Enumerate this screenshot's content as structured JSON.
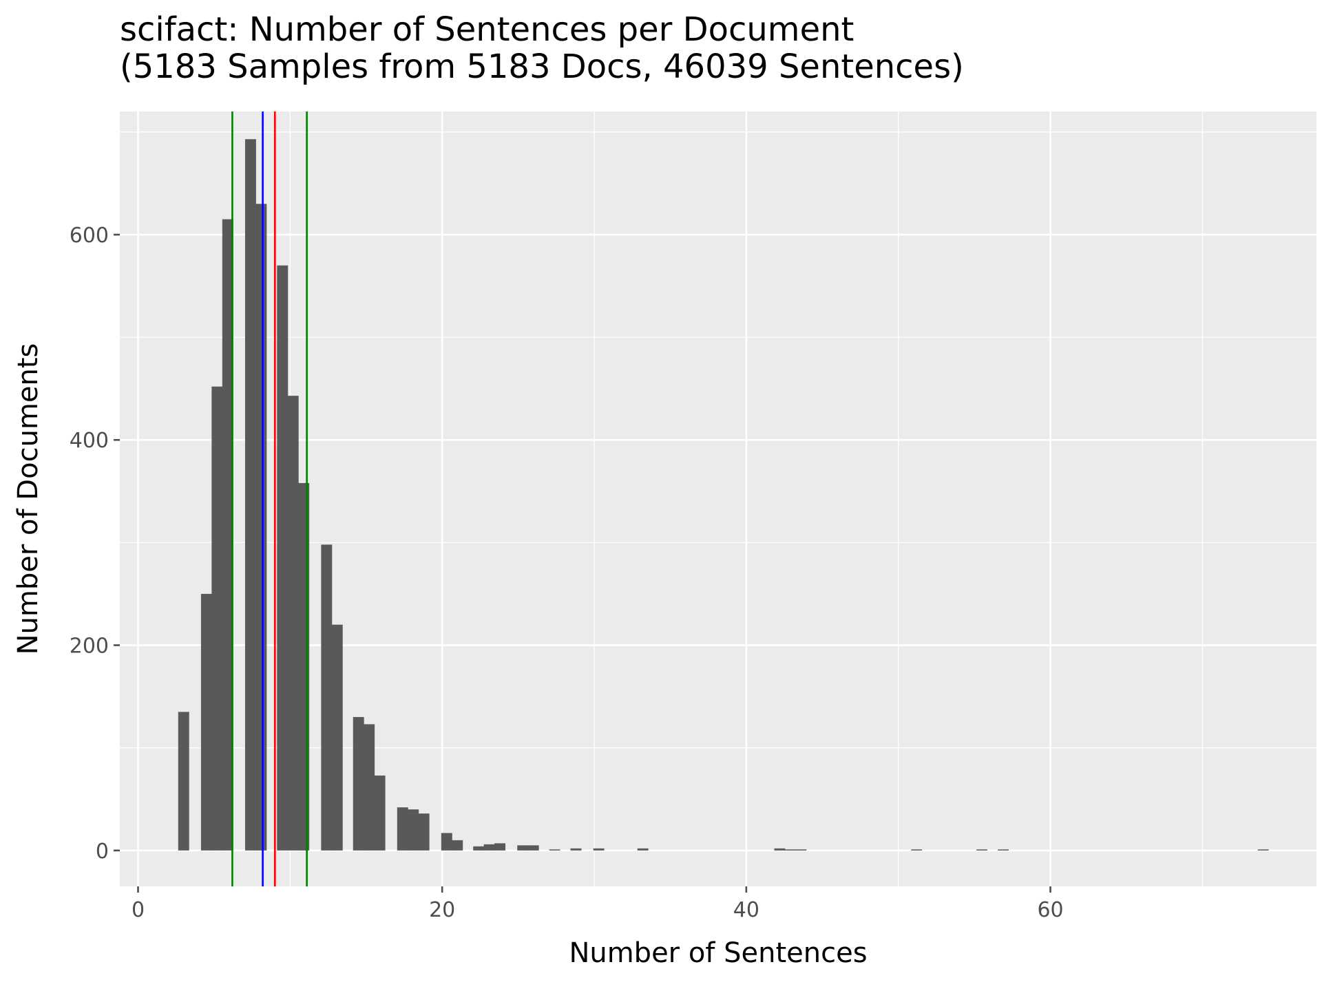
{
  "chart_data": {
    "type": "bar",
    "title": "scifact: Number of Sentences per Document",
    "subtitle": "(5183 Samples from 5183 Docs, 46039 Sentences)",
    "xlabel": "Number of Sentences",
    "ylabel": "Number of Documents",
    "xlim": [
      -1.2,
      77.5
    ],
    "ylim": [
      -35,
      720
    ],
    "x_ticks": [
      0,
      20,
      40,
      60
    ],
    "x_tick_labels": [
      "0",
      "20",
      "40",
      "60"
    ],
    "y_ticks": [
      0,
      200,
      400,
      600
    ],
    "y_tick_labels": [
      "0",
      "200",
      "400",
      "600"
    ],
    "x_minor_gridlines": [
      10,
      30,
      50,
      70
    ],
    "y_minor_gridlines": [
      100,
      300,
      500,
      700
    ],
    "grid": true,
    "bin_width": 0.72,
    "bins": [
      {
        "x": 3.0,
        "count": 135
      },
      {
        "x": 4.5,
        "count": 250
      },
      {
        "x": 5.2,
        "count": 452
      },
      {
        "x": 5.9,
        "count": 615
      },
      {
        "x": 7.4,
        "count": 693
      },
      {
        "x": 8.1,
        "count": 630
      },
      {
        "x": 9.5,
        "count": 570
      },
      {
        "x": 10.2,
        "count": 443
      },
      {
        "x": 10.9,
        "count": 358
      },
      {
        "x": 12.4,
        "count": 298
      },
      {
        "x": 13.1,
        "count": 220
      },
      {
        "x": 14.5,
        "count": 130
      },
      {
        "x": 15.2,
        "count": 123
      },
      {
        "x": 15.9,
        "count": 73
      },
      {
        "x": 17.4,
        "count": 42
      },
      {
        "x": 18.1,
        "count": 40
      },
      {
        "x": 18.8,
        "count": 36
      },
      {
        "x": 20.3,
        "count": 17
      },
      {
        "x": 21.0,
        "count": 10
      },
      {
        "x": 22.4,
        "count": 4
      },
      {
        "x": 23.1,
        "count": 6
      },
      {
        "x": 23.8,
        "count": 7
      },
      {
        "x": 25.3,
        "count": 5
      },
      {
        "x": 26.0,
        "count": 5
      },
      {
        "x": 27.4,
        "count": 1
      },
      {
        "x": 28.8,
        "count": 2
      },
      {
        "x": 30.3,
        "count": 2
      },
      {
        "x": 33.2,
        "count": 2
      },
      {
        "x": 42.2,
        "count": 2
      },
      {
        "x": 42.9,
        "count": 1
      },
      {
        "x": 43.6,
        "count": 1
      },
      {
        "x": 51.2,
        "count": 1
      },
      {
        "x": 55.5,
        "count": 1
      },
      {
        "x": 56.9,
        "count": 1
      },
      {
        "x": 74.0,
        "count": 1
      }
    ],
    "reference_lines": [
      {
        "x": 6.2,
        "color": "#008000"
      },
      {
        "x": 8.2,
        "color": "#0000ff"
      },
      {
        "x": 9.0,
        "color": "#ff0000"
      },
      {
        "x": 11.1,
        "color": "#008000"
      }
    ],
    "colors": {
      "bar": "#595959",
      "panel": "#ebebeb",
      "grid": "#ffffff",
      "tick": "#4d4d4d"
    }
  }
}
